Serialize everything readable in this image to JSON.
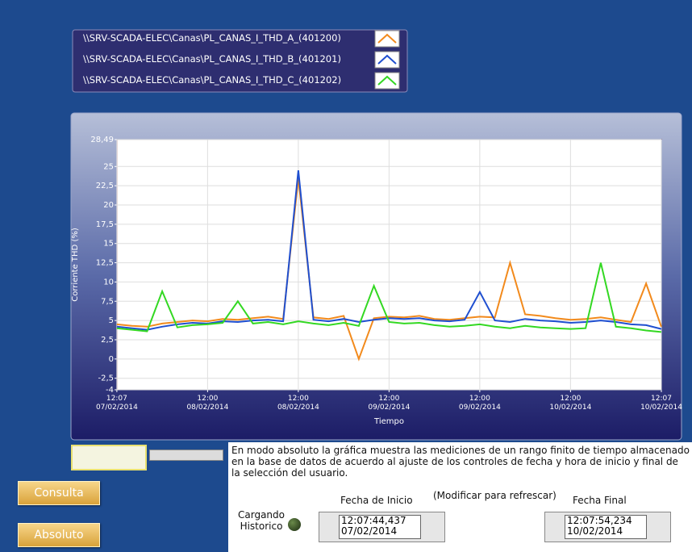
{
  "chart_data": {
    "type": "line",
    "ylabel": "Corriente THD (%)",
    "xlabel": "Tiempo",
    "x": [
      "07/02/2014 12:07",
      "07/02/2014 14:07",
      "07/02/2014 16:07",
      "07/02/2014 18:07",
      "07/02/2014 20:07",
      "07/02/2014 22:07",
      "08/02/2014 00:07",
      "08/02/2014 02:07",
      "08/02/2014 04:07",
      "08/02/2014 06:07",
      "08/02/2014 08:07",
      "08/02/2014 10:07",
      "08/02/2014 12:07",
      "08/02/2014 14:07",
      "08/02/2014 16:07",
      "08/02/2014 18:07",
      "08/02/2014 20:07",
      "08/02/2014 22:07",
      "09/02/2014 00:07",
      "09/02/2014 02:07",
      "09/02/2014 04:07",
      "09/02/2014 06:07",
      "09/02/2014 08:07",
      "09/02/2014 10:07",
      "09/02/2014 12:07",
      "09/02/2014 14:07",
      "09/02/2014 16:07",
      "09/02/2014 18:07",
      "09/02/2014 20:07",
      "09/02/2014 22:07",
      "10/02/2014 00:07",
      "10/02/2014 02:07",
      "10/02/2014 04:07",
      "10/02/2014 06:07",
      "10/02/2014 08:07",
      "10/02/2014 10:07",
      "10/02/2014 12:07"
    ],
    "series": [
      {
        "name": "\\\\SRV-SCADA-ELEC\\Canas\\PL_CANAS_I_THD_A_(401200)",
        "color": "#f28a1c",
        "values": [
          4.5,
          4.3,
          4.2,
          4.6,
          4.8,
          5,
          4.9,
          5.2,
          5.1,
          5.3,
          5.5,
          5.2,
          23.5,
          5.4,
          5.2,
          5.6,
          0,
          5.3,
          5.5,
          5.4,
          5.6,
          5.2,
          5.1,
          5.3,
          5.5,
          5.4,
          12.5,
          5.8,
          5.6,
          5.3,
          5.1,
          5.2,
          5.4,
          5.1,
          4.8,
          9.8,
          4.2
        ]
      },
      {
        "name": "\\\\SRV-SCADA-ELEC\\Canas\\PL_CANAS_I_THD_B_(401201)",
        "color": "#1f4fd0",
        "values": [
          4.2,
          4,
          3.8,
          4.2,
          4.5,
          4.7,
          4.6,
          4.9,
          4.8,
          5,
          5.1,
          4.9,
          24.5,
          5.1,
          4.9,
          5.2,
          4.8,
          5.1,
          5.3,
          5.2,
          5.3,
          5,
          4.9,
          5.1,
          8.7,
          5,
          4.8,
          5.2,
          5,
          4.9,
          4.7,
          4.8,
          5,
          4.8,
          4.5,
          4.4,
          3.9
        ]
      },
      {
        "name": "\\\\SRV-SCADA-ELEC\\Canas\\PL_CANAS_I_THD_C_(401202)",
        "color": "#33d822",
        "values": [
          4,
          3.8,
          3.6,
          8.8,
          4.1,
          4.4,
          4.5,
          4.7,
          7.5,
          4.6,
          4.8,
          4.5,
          4.9,
          4.6,
          4.4,
          4.7,
          4.3,
          9.5,
          4.8,
          4.6,
          4.7,
          4.4,
          4.2,
          4.3,
          4.5,
          4.2,
          4,
          4.3,
          4.1,
          4,
          3.9,
          4,
          12.5,
          4.2,
          4,
          3.7,
          3.5
        ]
      }
    ],
    "xlim": [
      "07/02/2014 12:07:44",
      "10/02/2014 12:07:54"
    ],
    "xticks": [
      {
        "value": "07/02/2014 12:07",
        "label": [
          "12:07",
          "07/02/2014"
        ]
      },
      {
        "value": "08/02/2014 00:07",
        "label": [
          "12:00",
          "08/02/2014"
        ]
      },
      {
        "value": "08/02/2014 12:07",
        "label": [
          "12:00",
          "08/02/2014"
        ]
      },
      {
        "value": "09/02/2014 00:07",
        "label": [
          "12:00",
          "09/02/2014"
        ]
      },
      {
        "value": "09/02/2014 12:07",
        "label": [
          "12:00",
          "09/02/2014"
        ]
      },
      {
        "value": "10/02/2014 00:07",
        "label": [
          "12:00",
          "10/02/2014"
        ]
      },
      {
        "value": "10/02/2014 12:07:54",
        "label": [
          "12:07",
          "10/02/2014"
        ]
      }
    ],
    "ylim": [
      -4,
      28.49
    ],
    "yticks": [
      {
        "value": 28.49,
        "label": "28,49"
      },
      25,
      {
        "value": 22.5,
        "label": "22,5"
      },
      20,
      {
        "value": 17.5,
        "label": "17,5"
      },
      15,
      {
        "value": 12.5,
        "label": "12,5"
      },
      10,
      {
        "value": 7.5,
        "label": "7,5"
      },
      5,
      {
        "value": 2.5,
        "label": "2,5"
      },
      0,
      {
        "value": -2.5,
        "label": "-2,5"
      },
      -4
    ],
    "grid": true
  },
  "description": "En  modo  absoluto  la gráfica muestra las mediciones  de  un rango  finito  de tiempo almacenado  en la base de datos  de  acuerdo al ajuste   de  los controles de fecha  y  hora de inicio y  final  de la  selección del usuario.",
  "refresh_note": "(Modificar para refrescar)",
  "fecha_inicio": {
    "label": "Fecha de Inicio",
    "time": "12:07:44,437",
    "date": "07/02/2014"
  },
  "fecha_final": {
    "label": "Fecha Final",
    "time": "12:07:54,234",
    "date": "10/02/2014"
  },
  "status": [
    "Cargando",
    "Historico"
  ],
  "buttons": [
    "Consulta",
    "Absoluto"
  ]
}
